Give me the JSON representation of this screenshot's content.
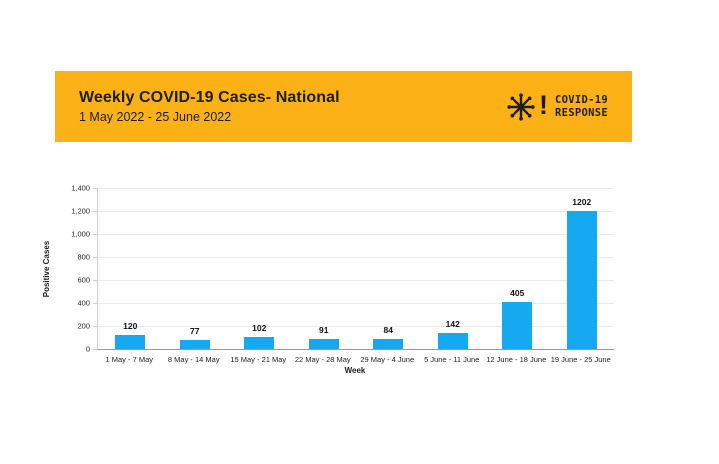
{
  "banner": {
    "title": "Weekly COVID-19 Cases- National",
    "subtitle": "1 May 2022 - 25 June 2022",
    "background_color": "#FCB216",
    "text_color": "#1d1d1b",
    "logo": {
      "icon": "virus-burst-icon",
      "bang": "!",
      "line1": "COVID-19",
      "line2": "RESPONSE"
    }
  },
  "chart_data": {
    "type": "bar",
    "title": "Weekly COVID-19 Cases- National",
    "categories": [
      "1 May - 7 May",
      "8 May - 14 May",
      "15 May - 21 May",
      "22 May - 28 May",
      "29 May - 4 June",
      "5 June - 11 June",
      "12 June - 18 June",
      "19 June - 25 June"
    ],
    "values": [
      120,
      77,
      102,
      91,
      84,
      142,
      405,
      1202
    ],
    "data_labels": [
      "120",
      "77",
      "102",
      "91",
      "84",
      "142",
      "405",
      "1202"
    ],
    "xlabel": "Week",
    "ylabel": "Positive Cases",
    "ylim": [
      0,
      1400
    ],
    "ytick_step": 200,
    "ytick_labels": [
      "0",
      "200",
      "400",
      "600",
      "800",
      "1,000",
      "1,200",
      "1,400"
    ],
    "grid": true,
    "legend": "none",
    "bar_color": "#14a9f0",
    "gridline_color": "#e9e9e9"
  }
}
